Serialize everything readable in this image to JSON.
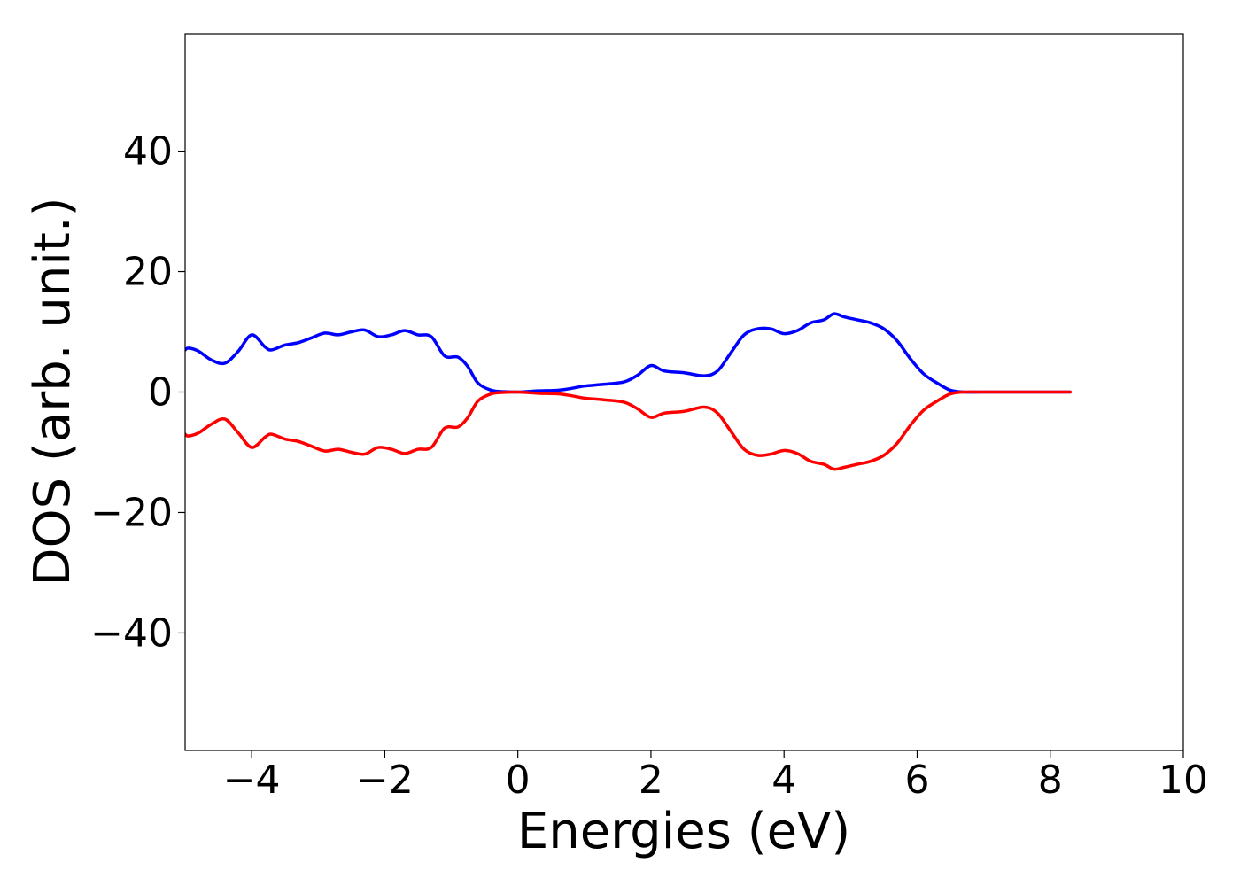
{
  "chart_data": {
    "type": "line",
    "title": "",
    "xlabel": "Energies (eV)",
    "ylabel": "DOS (arb. unit.)",
    "xlim": [
      -5,
      10
    ],
    "ylim": [
      -59.5,
      59.5
    ],
    "xticks": [
      -4,
      -2,
      0,
      2,
      4,
      6,
      8,
      10
    ],
    "xtick_labels": [
      "−4",
      "−2",
      "0",
      "2",
      "4",
      "6",
      "8",
      "10"
    ],
    "yticks": [
      40,
      20,
      0,
      -20,
      -40
    ],
    "ytick_labels": [
      "40",
      "20",
      "0",
      "−20",
      "−40"
    ],
    "grid": false,
    "legend": "none",
    "series": [
      {
        "color": "#0000ff",
        "x": [
          -5.0,
          -4.95,
          -4.8,
          -4.6,
          -4.4,
          -4.2,
          -4.0,
          -3.8,
          -3.7,
          -3.5,
          -3.3,
          -3.1,
          -2.9,
          -2.7,
          -2.5,
          -2.3,
          -2.1,
          -1.9,
          -1.7,
          -1.5,
          -1.3,
          -1.1,
          -0.9,
          -0.75,
          -0.6,
          -0.4,
          -0.2,
          0.0,
          0.3,
          0.6,
          0.8,
          1.0,
          1.3,
          1.6,
          1.8,
          2.0,
          2.2,
          2.5,
          2.8,
          3.0,
          3.2,
          3.4,
          3.6,
          3.8,
          4.0,
          4.2,
          4.4,
          4.6,
          4.75,
          4.9,
          5.1,
          5.3,
          5.5,
          5.7,
          5.9,
          6.1,
          6.3,
          6.5,
          6.7,
          7.0,
          7.5,
          8.0,
          8.3
        ],
        "y": [
          7.0,
          7.3,
          6.8,
          5.3,
          4.8,
          6.8,
          9.5,
          7.5,
          7.0,
          7.8,
          8.2,
          9.0,
          9.8,
          9.5,
          10.0,
          10.3,
          9.2,
          9.5,
          10.2,
          9.5,
          9.2,
          6.0,
          5.8,
          4.2,
          1.5,
          0.3,
          0.05,
          0.0,
          0.2,
          0.3,
          0.6,
          1.0,
          1.3,
          1.7,
          2.8,
          4.4,
          3.5,
          3.2,
          2.7,
          3.5,
          6.5,
          9.5,
          10.5,
          10.5,
          9.7,
          10.2,
          11.5,
          12.0,
          13.0,
          12.5,
          12.0,
          11.5,
          10.5,
          8.5,
          5.5,
          3.0,
          1.5,
          0.3,
          0.0,
          0.0,
          0.0,
          0.0,
          0.0
        ]
      },
      {
        "color": "#ff0000",
        "x": [
          -5.0,
          -4.95,
          -4.8,
          -4.6,
          -4.4,
          -4.2,
          -4.0,
          -3.8,
          -3.7,
          -3.5,
          -3.3,
          -3.1,
          -2.9,
          -2.7,
          -2.5,
          -2.3,
          -2.1,
          -1.9,
          -1.7,
          -1.5,
          -1.3,
          -1.1,
          -0.9,
          -0.75,
          -0.6,
          -0.4,
          -0.2,
          0.0,
          0.3,
          0.6,
          0.8,
          1.0,
          1.3,
          1.6,
          1.8,
          2.0,
          2.2,
          2.5,
          2.8,
          3.0,
          3.2,
          3.4,
          3.6,
          3.8,
          4.0,
          4.2,
          4.4,
          4.6,
          4.75,
          4.9,
          5.1,
          5.3,
          5.5,
          5.7,
          5.9,
          6.1,
          6.3,
          6.5,
          6.7,
          7.0,
          7.5,
          8.0,
          8.3
        ],
        "y": [
          -7.0,
          -7.3,
          -6.8,
          -5.3,
          -4.5,
          -6.8,
          -9.2,
          -7.5,
          -7.0,
          -7.8,
          -8.2,
          -9.0,
          -9.8,
          -9.5,
          -10.0,
          -10.3,
          -9.2,
          -9.5,
          -10.2,
          -9.5,
          -9.2,
          -6.0,
          -5.8,
          -4.2,
          -1.5,
          -0.3,
          -0.05,
          0.0,
          -0.2,
          -0.3,
          -0.6,
          -1.0,
          -1.3,
          -1.7,
          -2.8,
          -4.2,
          -3.5,
          -3.2,
          -2.5,
          -3.5,
          -6.5,
          -9.5,
          -10.5,
          -10.3,
          -9.7,
          -10.2,
          -11.5,
          -12.0,
          -12.8,
          -12.5,
          -12.0,
          -11.5,
          -10.5,
          -8.5,
          -5.5,
          -3.0,
          -1.5,
          -0.3,
          0.0,
          0.0,
          0.0,
          0.0,
          0.0
        ]
      }
    ]
  }
}
